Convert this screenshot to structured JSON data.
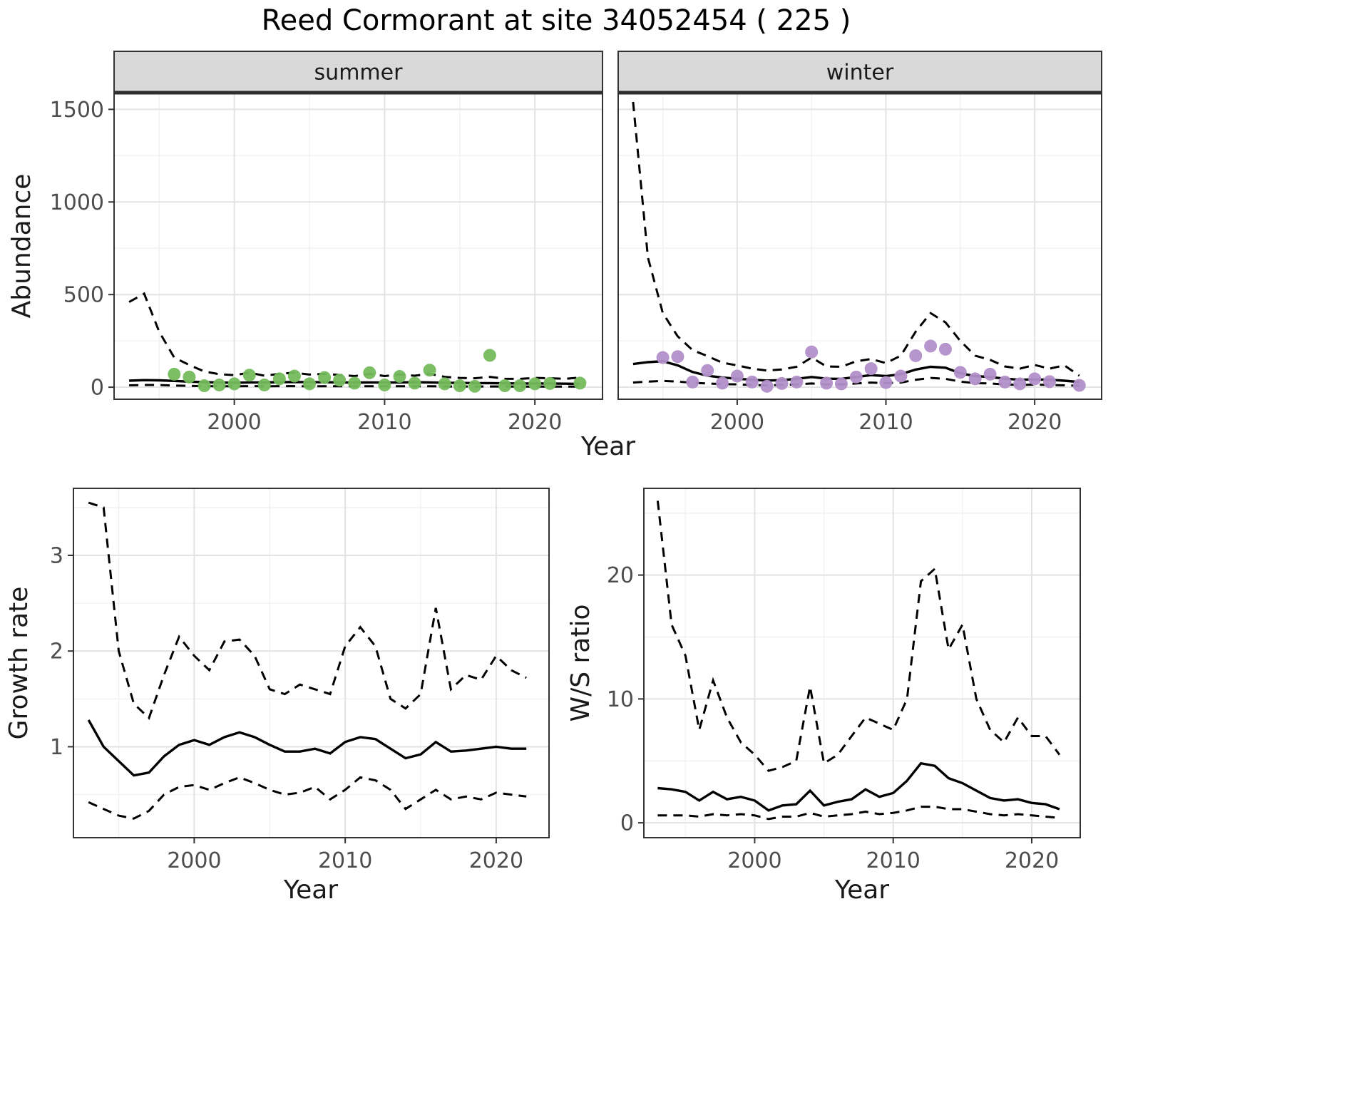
{
  "title": "Reed Cormorant at site 34052454 ( 225 )",
  "colors": {
    "summer_point": "#74bb5c",
    "winter_point": "#b18fc8",
    "line": "#000000",
    "strip_bg": "#d9d9d9",
    "strip_border": "#333333",
    "panel_border": "#333333",
    "grid_major": "#e3e3e3",
    "grid_minor": "#f1f1f1",
    "tick_mark": "#333333",
    "tick_text": "#4d4d4d",
    "axis_text": "#1a1a1a"
  },
  "chart_data": [
    {
      "id": "abundance-summer",
      "type": "line",
      "facet": "summer",
      "xlabel": "Year",
      "ylabel": "Abundance",
      "xlim": [
        1992,
        2024.5
      ],
      "ylim": [
        -65,
        1590
      ],
      "xticks": [
        2000,
        2010,
        2020
      ],
      "yticks": [
        0,
        500,
        1000,
        1500
      ],
      "years": [
        1993,
        1994,
        1995,
        1996,
        1997,
        1998,
        1999,
        2000,
        2001,
        2002,
        2003,
        2004,
        2005,
        2006,
        2007,
        2008,
        2009,
        2010,
        2011,
        2012,
        2013,
        2014,
        2015,
        2016,
        2017,
        2018,
        2019,
        2020,
        2021,
        2022,
        2023
      ],
      "fit": [
        35,
        38,
        37,
        34,
        30,
        27,
        25,
        24,
        26,
        26,
        27,
        28,
        27,
        27,
        26,
        25,
        26,
        25,
        26,
        27,
        26,
        24,
        23,
        22,
        22,
        21,
        20,
        20,
        20,
        19,
        18
      ],
      "upper_ci": [
        460,
        505,
        300,
        160,
        120,
        85,
        70,
        65,
        78,
        62,
        72,
        78,
        68,
        72,
        66,
        60,
        72,
        60,
        68,
        62,
        72,
        56,
        50,
        48,
        56,
        46,
        45,
        50,
        48,
        45,
        52
      ],
      "lower_ci": [
        10,
        12,
        12,
        9,
        7,
        6,
        5,
        5,
        6,
        5,
        6,
        6,
        5,
        5,
        5,
        5,
        5,
        5,
        5,
        5,
        5,
        4,
        4,
        4,
        4,
        4,
        3,
        3,
        3,
        3,
        3
      ],
      "points": {
        "color_key": "summer_point",
        "x": [
          1996,
          1997,
          1998,
          1999,
          2000,
          2001,
          2002,
          2003,
          2004,
          2005,
          2006,
          2007,
          2008,
          2009,
          2010,
          2011,
          2012,
          2013,
          2014,
          2015,
          2016,
          2017,
          2018,
          2019,
          2020,
          2021,
          2023
        ],
        "y": [
          70,
          55,
          8,
          12,
          18,
          65,
          12,
          45,
          60,
          18,
          52,
          38,
          22,
          78,
          12,
          58,
          22,
          92,
          18,
          8,
          5,
          172,
          8,
          8,
          18,
          20,
          22
        ]
      }
    },
    {
      "id": "abundance-winter",
      "type": "line",
      "facet": "winter",
      "xlabel": "Year",
      "ylabel": "Abundance",
      "xlim": [
        1992,
        2024.5
      ],
      "ylim": [
        -65,
        1590
      ],
      "xticks": [
        2000,
        2010,
        2020
      ],
      "yticks": [
        0,
        500,
        1000,
        1500
      ],
      "years": [
        1993,
        1994,
        1995,
        1996,
        1997,
        1998,
        1999,
        2000,
        2001,
        2002,
        2003,
        2004,
        2005,
        2006,
        2007,
        2008,
        2009,
        2010,
        2011,
        2012,
        2013,
        2014,
        2015,
        2016,
        2017,
        2018,
        2019,
        2020,
        2021,
        2022,
        2023
      ],
      "fit": [
        125,
        135,
        140,
        118,
        82,
        62,
        52,
        46,
        40,
        36,
        38,
        45,
        55,
        46,
        45,
        55,
        65,
        60,
        70,
        95,
        110,
        105,
        75,
        60,
        55,
        46,
        40,
        42,
        40,
        35,
        28
      ],
      "upper_ci": [
        1540,
        700,
        400,
        275,
        200,
        168,
        132,
        118,
        100,
        90,
        96,
        110,
        160,
        112,
        110,
        140,
        152,
        130,
        170,
        300,
        400,
        350,
        250,
        170,
        148,
        112,
        100,
        120,
        100,
        118,
        62
      ],
      "lower_ci": [
        25,
        30,
        34,
        30,
        24,
        20,
        17,
        15,
        12,
        10,
        12,
        15,
        20,
        15,
        15,
        20,
        25,
        22,
        25,
        40,
        50,
        45,
        30,
        22,
        20,
        15,
        12,
        14,
        12,
        10,
        8
      ],
      "points": {
        "color_key": "winter_point",
        "x": [
          1995,
          1996,
          1997,
          1998,
          1999,
          2000,
          2001,
          2002,
          2003,
          2004,
          2005,
          2006,
          2007,
          2008,
          2009,
          2010,
          2011,
          2012,
          2013,
          2014,
          2015,
          2016,
          2017,
          2018,
          2019,
          2020,
          2021,
          2023
        ],
        "y": [
          160,
          165,
          28,
          90,
          22,
          60,
          28,
          5,
          20,
          28,
          190,
          22,
          18,
          55,
          100,
          25,
          60,
          170,
          222,
          205,
          80,
          45,
          70,
          28,
          18,
          45,
          30,
          10
        ]
      }
    },
    {
      "id": "growth-rate",
      "type": "line",
      "facet": "",
      "xlabel": "Year",
      "ylabel": "Growth rate",
      "xlim": [
        1992,
        2023.5
      ],
      "ylim": [
        0.05,
        3.7
      ],
      "xticks": [
        2000,
        2010,
        2020
      ],
      "yticks": [
        1,
        2,
        3
      ],
      "years": [
        1993,
        1994,
        1995,
        1996,
        1997,
        1998,
        1999,
        2000,
        2001,
        2002,
        2003,
        2004,
        2005,
        2006,
        2007,
        2008,
        2009,
        2010,
        2011,
        2012,
        2013,
        2014,
        2015,
        2016,
        2017,
        2018,
        2019,
        2020,
        2021,
        2022
      ],
      "fit": [
        1.28,
        1.0,
        0.85,
        0.7,
        0.73,
        0.9,
        1.02,
        1.07,
        1.02,
        1.1,
        1.15,
        1.1,
        1.02,
        0.95,
        0.95,
        0.98,
        0.93,
        1.05,
        1.1,
        1.08,
        0.98,
        0.88,
        0.92,
        1.05,
        0.95,
        0.96,
        0.98,
        1.0,
        0.98,
        0.98
      ],
      "upper_ci": [
        3.55,
        3.5,
        2.0,
        1.45,
        1.3,
        1.75,
        2.15,
        1.95,
        1.8,
        2.1,
        2.12,
        1.95,
        1.6,
        1.55,
        1.65,
        1.6,
        1.55,
        2.05,
        2.25,
        2.05,
        1.5,
        1.4,
        1.55,
        2.45,
        1.6,
        1.75,
        1.7,
        1.95,
        1.8,
        1.72
      ],
      "lower_ci": [
        0.42,
        0.35,
        0.28,
        0.25,
        0.33,
        0.5,
        0.58,
        0.6,
        0.55,
        0.62,
        0.68,
        0.62,
        0.55,
        0.5,
        0.52,
        0.58,
        0.45,
        0.55,
        0.68,
        0.65,
        0.55,
        0.35,
        0.45,
        0.55,
        0.45,
        0.48,
        0.45,
        0.52,
        0.5,
        0.48
      ]
    },
    {
      "id": "ws-ratio",
      "type": "line",
      "facet": "",
      "xlabel": "Year",
      "ylabel": "W/S ratio",
      "xlim": [
        1992,
        2023.5
      ],
      "ylim": [
        -1.2,
        27
      ],
      "xticks": [
        2000,
        2010,
        2020
      ],
      "yticks": [
        0,
        10,
        20
      ],
      "years": [
        1993,
        1994,
        1995,
        1996,
        1997,
        1998,
        1999,
        2000,
        2001,
        2002,
        2003,
        2004,
        2005,
        2006,
        2007,
        2008,
        2009,
        2010,
        2011,
        2012,
        2013,
        2014,
        2015,
        2016,
        2017,
        2018,
        2019,
        2020,
        2021,
        2022
      ],
      "fit": [
        2.8,
        2.7,
        2.5,
        1.8,
        2.5,
        1.9,
        2.1,
        1.8,
        1.0,
        1.4,
        1.5,
        2.6,
        1.4,
        1.7,
        1.9,
        2.7,
        2.1,
        2.4,
        3.4,
        4.8,
        4.6,
        3.6,
        3.2,
        2.6,
        2.0,
        1.8,
        1.9,
        1.6,
        1.5,
        1.1
      ],
      "upper_ci": [
        26,
        16,
        13.5,
        7.5,
        11.5,
        8.5,
        6.5,
        5.5,
        4.2,
        4.5,
        5.0,
        11.0,
        4.8,
        5.5,
        7.0,
        8.5,
        8.0,
        7.5,
        10.0,
        19.5,
        20.5,
        14.0,
        16.0,
        10.0,
        7.5,
        6.5,
        8.5,
        7.0,
        7.0,
        5.5
      ],
      "lower_ci": [
        0.6,
        0.6,
        0.6,
        0.5,
        0.7,
        0.6,
        0.7,
        0.6,
        0.3,
        0.5,
        0.5,
        0.8,
        0.5,
        0.6,
        0.7,
        0.9,
        0.7,
        0.8,
        1.0,
        1.3,
        1.3,
        1.1,
        1.1,
        0.9,
        0.7,
        0.6,
        0.7,
        0.6,
        0.5,
        0.4
      ]
    }
  ]
}
